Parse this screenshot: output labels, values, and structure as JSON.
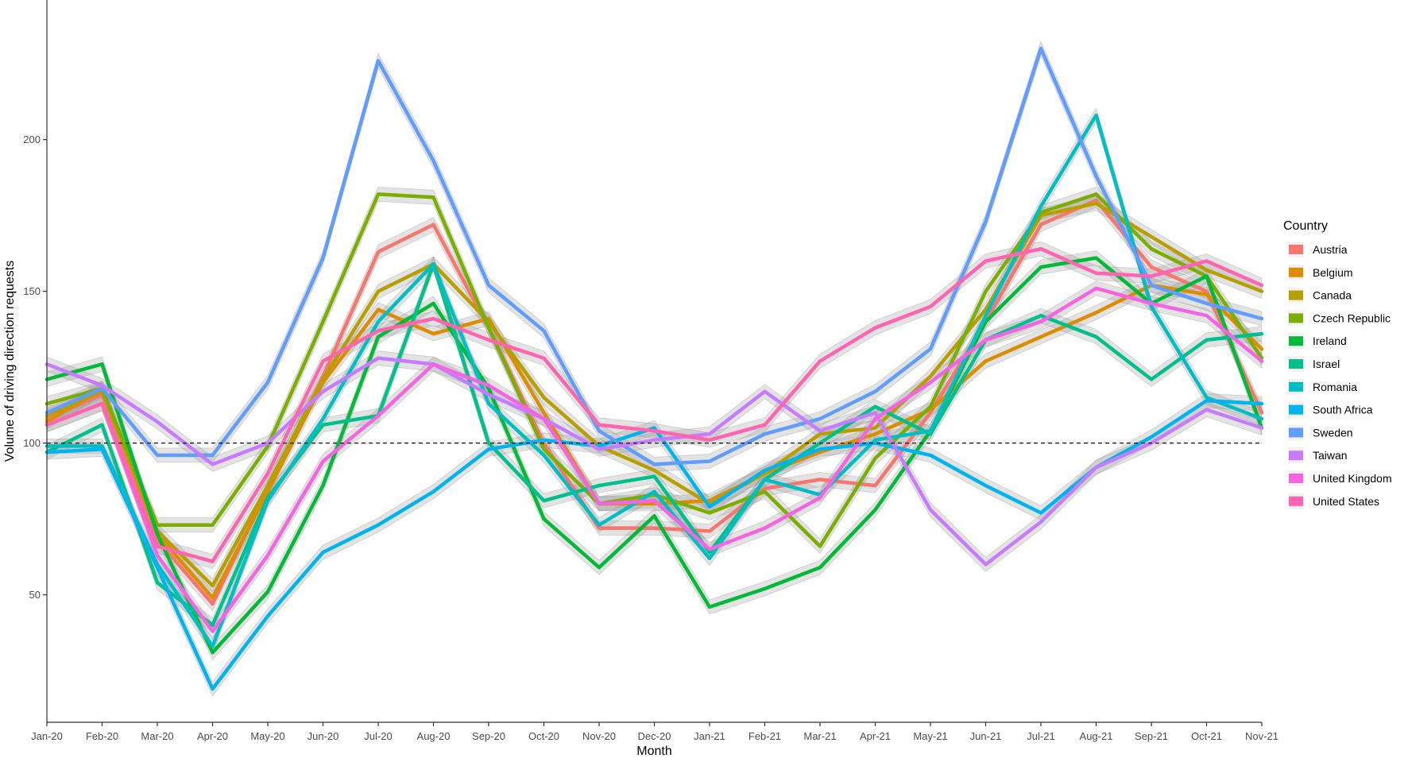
{
  "chart_data": {
    "type": "line",
    "title": "",
    "xlabel": "Month",
    "ylabel": "Volume of driving direction requests",
    "categories": [
      "Jan-20",
      "Feb-20",
      "Mar-20",
      "Apr-20",
      "May-20",
      "Jun-20",
      "Jul-20",
      "Aug-20",
      "Sep-20",
      "Oct-20",
      "Nov-20",
      "Dec-20",
      "Jan-21",
      "Feb-21",
      "Mar-21",
      "Apr-21",
      "May-21",
      "Jun-21",
      "Jul-21",
      "Aug-21",
      "Sep-21",
      "Oct-21",
      "Nov-21"
    ],
    "y_ticks": [
      50,
      100,
      150,
      200
    ],
    "ylim": [
      8,
      246
    ],
    "reference_line": 100,
    "grid": false,
    "confidence_band": true,
    "legend_title": "Country",
    "legend_position": "right",
    "series": [
      {
        "name": "Austria",
        "color": "#F8766D",
        "values": [
          108,
          116,
          68,
          47,
          85,
          122,
          163,
          172,
          138,
          100,
          72,
          72,
          71,
          85,
          88,
          86,
          110,
          140,
          172,
          180,
          158,
          150,
          110
        ]
      },
      {
        "name": "Belgium",
        "color": "#DE8C00",
        "values": [
          107,
          118,
          70,
          49,
          84,
          120,
          144,
          136,
          141,
          110,
          80,
          80,
          81,
          90,
          97,
          103,
          111,
          127,
          135,
          143,
          152,
          149,
          131
        ]
      },
      {
        "name": "Canada",
        "color": "#B79F00",
        "values": [
          109,
          117,
          71,
          53,
          86,
          121,
          150,
          159,
          140,
          115,
          99,
          91,
          80,
          90,
          103,
          105,
          122,
          144,
          175,
          179,
          168,
          157,
          150
        ]
      },
      {
        "name": "Czech Republic",
        "color": "#7CAE00",
        "values": [
          113,
          118,
          73,
          73,
          99,
          140,
          182,
          181,
          138,
          98,
          80,
          83,
          77,
          84,
          66,
          95,
          112,
          150,
          176,
          182,
          164,
          155,
          128
        ]
      },
      {
        "name": "Ireland",
        "color": "#00BA38",
        "values": [
          121,
          126,
          70,
          31,
          51,
          86,
          135,
          146,
          118,
          75,
          59,
          76,
          46,
          52,
          59,
          78,
          104,
          140,
          158,
          161,
          146,
          155,
          105
        ]
      },
      {
        "name": "Israel",
        "color": "#00C08B",
        "values": [
          97,
          106,
          54,
          40,
          82,
          106,
          109,
          159,
          100,
          81,
          86,
          89,
          64,
          88,
          100,
          112,
          103,
          134,
          142,
          135,
          121,
          134,
          136
        ]
      },
      {
        "name": "Romania",
        "color": "#00BFC4",
        "values": [
          99,
          99,
          60,
          33,
          81,
          108,
          140,
          159,
          113,
          96,
          73,
          84,
          62,
          88,
          83,
          101,
          104,
          142,
          178,
          208,
          145,
          115,
          108
        ]
      },
      {
        "name": "South Africa",
        "color": "#00B4F0",
        "values": [
          97,
          98,
          59,
          19,
          43,
          64,
          73,
          84,
          98,
          101,
          99,
          105,
          79,
          91,
          98,
          100,
          96,
          86,
          77,
          92,
          102,
          114,
          113
        ]
      },
      {
        "name": "Sweden",
        "color": "#619CFF",
        "values": [
          110,
          118,
          96,
          96,
          120,
          161,
          226,
          193,
          152,
          137,
          104,
          93,
          94,
          103,
          108,
          117,
          131,
          173,
          230,
          188,
          152,
          146,
          141
        ]
      },
      {
        "name": "Taiwan",
        "color": "#C77CFF",
        "values": [
          126,
          119,
          107,
          93,
          100,
          117,
          128,
          126,
          116,
          108,
          98,
          101,
          103,
          117,
          104,
          110,
          78,
          60,
          74,
          92,
          100,
          111,
          105
        ]
      },
      {
        "name": "United Kingdom",
        "color": "#F564E3",
        "values": [
          106,
          113,
          63,
          38,
          63,
          94,
          109,
          126,
          119,
          108,
          80,
          81,
          65,
          72,
          82,
          108,
          120,
          134,
          140,
          151,
          146,
          142,
          127
        ]
      },
      {
        "name": "United States",
        "color": "#FF64B0",
        "values": [
          106,
          113,
          66,
          61,
          90,
          127,
          137,
          141,
          134,
          128,
          106,
          104,
          101,
          106,
          127,
          138,
          145,
          160,
          164,
          156,
          155,
          160,
          152
        ]
      }
    ]
  }
}
